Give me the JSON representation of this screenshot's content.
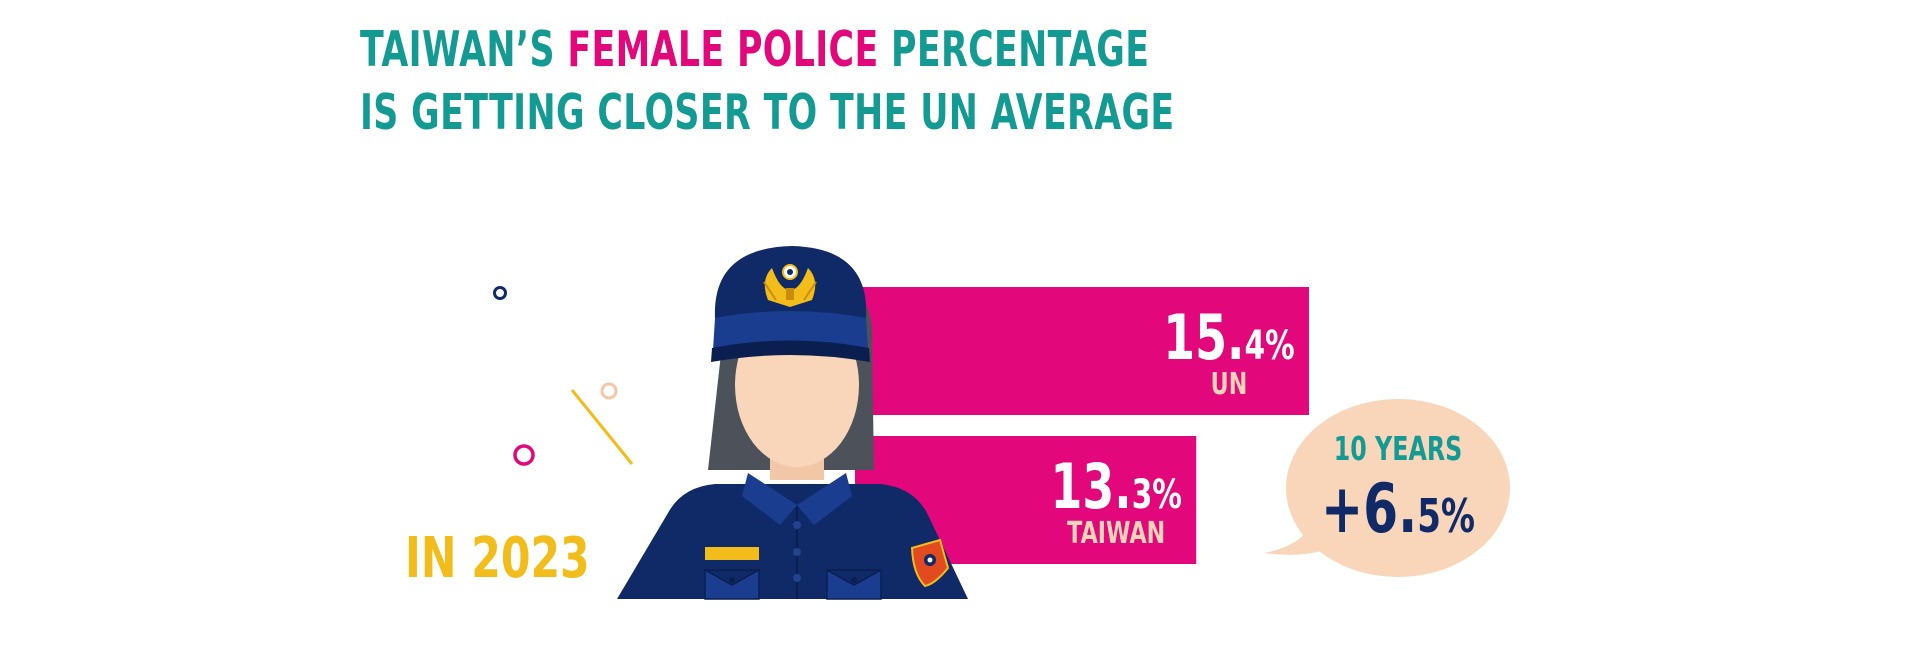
{
  "title": {
    "line1_a": "TAIWAN’S ",
    "line1_b": "FEMALE POLICE",
    "line1_c": " PERCENTAGE",
    "line2": "IS GETTING CLOSER TO THE UN AVERAGE"
  },
  "year_label": "IN 2023",
  "chart_data": {
    "type": "bar",
    "orientation": "horizontal",
    "categories": [
      "UN",
      "TAIWAN"
    ],
    "values": [
      15.4,
      13.3
    ],
    "unit": "%",
    "value_labels": [
      {
        "big": "15.",
        "small": "4%"
      },
      {
        "big": "13.",
        "small": "3%"
      }
    ],
    "colors": {
      "bar": "#e2077a",
      "category_text": "#f7d3b8",
      "value_text": "#ffffff"
    }
  },
  "callout": {
    "label": "10 YEARS",
    "value_big": "+6.",
    "value_small": "5%"
  },
  "colors": {
    "teal": "#139a93",
    "pink": "#e2077a",
    "navy": "#0f2a66",
    "yellow": "#f2bc1b",
    "peach": "#f9d6b9",
    "skin": "#f9d6b9",
    "hair": "#4d5159"
  },
  "icons": [
    "female-police-officer-illustration",
    "police-cap-badge-icon",
    "shoulder-patch-icon"
  ]
}
